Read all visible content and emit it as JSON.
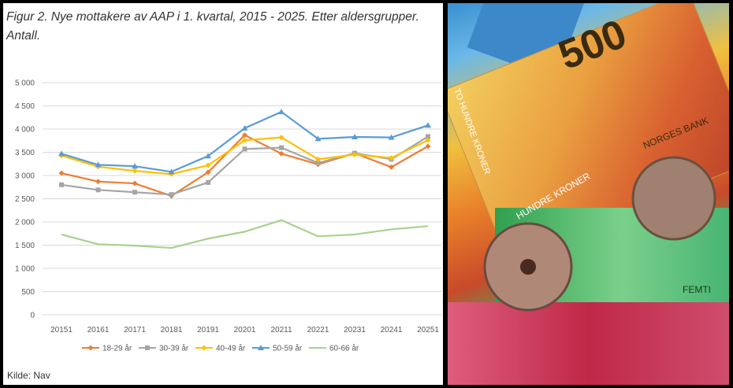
{
  "chart_data": {
    "type": "line",
    "title": "Figur 2. Nye mottakere av AAP i 1. kvartal, 2015 - 2025. Etter aldersgrupper. Antall.",
    "source": "Kilde: Nav",
    "categories": [
      "20151",
      "20161",
      "20171",
      "20181",
      "20191",
      "20201",
      "20211",
      "20221",
      "20231",
      "20241",
      "20251"
    ],
    "ylim": [
      0,
      5000
    ],
    "yticks": [
      "0",
      "500",
      "1 000",
      "1 500",
      "2 000",
      "2 500",
      "3 000",
      "3 500",
      "4 000",
      "4 500",
      "5 000"
    ],
    "grid": true,
    "legend_position": "bottom",
    "series": [
      {
        "name": "18-29 år",
        "color": "#ED7D31",
        "marker": "diamond",
        "values": [
          3050,
          2870,
          2830,
          2560,
          3070,
          3870,
          3470,
          3240,
          3480,
          3180,
          3630
        ]
      },
      {
        "name": "30-39 år",
        "color": "#A5A5A5",
        "marker": "square",
        "values": [
          2800,
          2690,
          2640,
          2590,
          2850,
          3570,
          3600,
          3270,
          3480,
          3350,
          3840
        ]
      },
      {
        "name": "40-49 år",
        "color": "#FFC000",
        "marker": "diamond",
        "values": [
          3430,
          3190,
          3100,
          3030,
          3220,
          3760,
          3820,
          3350,
          3450,
          3380,
          3760
        ]
      },
      {
        "name": "50-59 år",
        "color": "#5B9BD5",
        "marker": "triangle",
        "values": [
          3470,
          3230,
          3200,
          3080,
          3420,
          4020,
          4370,
          3790,
          3830,
          3820,
          4080
        ]
      },
      {
        "name": "60-66 år",
        "color": "#A9D18E",
        "marker": "none",
        "values": [
          1730,
          1520,
          1490,
          1440,
          1640,
          1790,
          2040,
          1690,
          1730,
          1840,
          1910
        ]
      }
    ]
  },
  "photo": {
    "note_text": [
      "500",
      "FEMTI",
      "NORGES BANK",
      "HUNDRE KRONER",
      "TO HUNDRE KRONER"
    ]
  }
}
